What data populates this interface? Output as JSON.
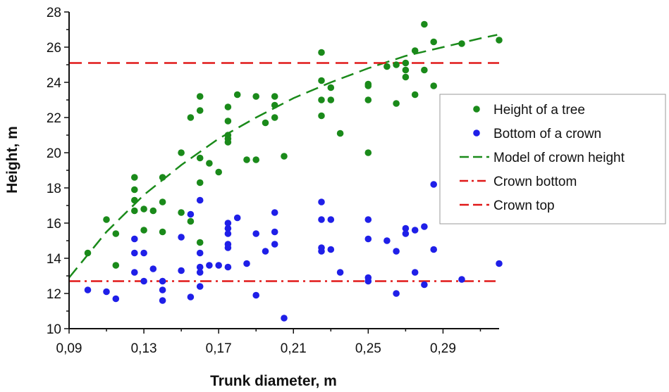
{
  "chart_data": {
    "type": "scatter",
    "xlabel": "Trunk diameter, m",
    "ylabel": "Height, m",
    "xlim": [
      0.09,
      0.32
    ],
    "ylim": [
      10,
      28
    ],
    "x_ticks": [
      "0,09",
      "0,13",
      "0,17",
      "0,21",
      "0,25",
      "0,29"
    ],
    "y_ticks": [
      "10",
      "12",
      "14",
      "16",
      "18",
      "20",
      "22",
      "24",
      "26",
      "28"
    ],
    "grid": false,
    "legend_position": "right",
    "colors": {
      "tree_height": "#1a8a1a",
      "crown_bottom_points": "#1f1fe8",
      "model": "#1a8a1a",
      "crown_bottom_line": "#e01818",
      "crown_top_line": "#e01818",
      "axis": "#111111"
    },
    "series": [
      {
        "name": "Height of a tree",
        "kind": "scatter",
        "points": [
          [
            0.1,
            14.3
          ],
          [
            0.11,
            16.2
          ],
          [
            0.115,
            15.4
          ],
          [
            0.115,
            13.6
          ],
          [
            0.125,
            18.6
          ],
          [
            0.125,
            17.9
          ],
          [
            0.125,
            17.3
          ],
          [
            0.125,
            16.7
          ],
          [
            0.13,
            16.8
          ],
          [
            0.13,
            15.6
          ],
          [
            0.135,
            16.7
          ],
          [
            0.14,
            18.6
          ],
          [
            0.14,
            17.2
          ],
          [
            0.14,
            15.5
          ],
          [
            0.15,
            20.0
          ],
          [
            0.15,
            16.6
          ],
          [
            0.155,
            22.0
          ],
          [
            0.155,
            16.1
          ],
          [
            0.16,
            23.2
          ],
          [
            0.16,
            22.4
          ],
          [
            0.16,
            19.7
          ],
          [
            0.16,
            18.3
          ],
          [
            0.16,
            14.9
          ],
          [
            0.165,
            19.4
          ],
          [
            0.17,
            18.9
          ],
          [
            0.175,
            22.6
          ],
          [
            0.175,
            21.8
          ],
          [
            0.175,
            21.0
          ],
          [
            0.175,
            20.8
          ],
          [
            0.175,
            20.6
          ],
          [
            0.18,
            23.3
          ],
          [
            0.185,
            19.6
          ],
          [
            0.19,
            23.2
          ],
          [
            0.19,
            19.6
          ],
          [
            0.195,
            21.7
          ],
          [
            0.2,
            23.2
          ],
          [
            0.2,
            22.7
          ],
          [
            0.2,
            22.0
          ],
          [
            0.205,
            19.8
          ],
          [
            0.225,
            25.7
          ],
          [
            0.225,
            24.1
          ],
          [
            0.225,
            23.0
          ],
          [
            0.225,
            22.1
          ],
          [
            0.23,
            23.7
          ],
          [
            0.23,
            23.0
          ],
          [
            0.235,
            21.1
          ],
          [
            0.25,
            23.9
          ],
          [
            0.25,
            23.8
          ],
          [
            0.25,
            23.0
          ],
          [
            0.25,
            20.0
          ],
          [
            0.26,
            24.9
          ],
          [
            0.265,
            25.0
          ],
          [
            0.265,
            22.8
          ],
          [
            0.27,
            25.1
          ],
          [
            0.27,
            24.7
          ],
          [
            0.27,
            24.3
          ],
          [
            0.275,
            25.8
          ],
          [
            0.275,
            23.3
          ],
          [
            0.28,
            27.3
          ],
          [
            0.28,
            24.7
          ],
          [
            0.285,
            26.3
          ],
          [
            0.285,
            23.8
          ],
          [
            0.3,
            26.2
          ],
          [
            0.32,
            26.4
          ]
        ]
      },
      {
        "name": "Bottom of a crown",
        "kind": "scatter",
        "points": [
          [
            0.1,
            12.2
          ],
          [
            0.11,
            12.1
          ],
          [
            0.115,
            11.7
          ],
          [
            0.125,
            15.1
          ],
          [
            0.125,
            14.3
          ],
          [
            0.125,
            13.2
          ],
          [
            0.13,
            14.3
          ],
          [
            0.13,
            12.7
          ],
          [
            0.135,
            13.4
          ],
          [
            0.14,
            12.7
          ],
          [
            0.14,
            12.2
          ],
          [
            0.14,
            11.6
          ],
          [
            0.15,
            15.2
          ],
          [
            0.15,
            13.3
          ],
          [
            0.155,
            16.5
          ],
          [
            0.155,
            11.8
          ],
          [
            0.16,
            17.3
          ],
          [
            0.16,
            14.3
          ],
          [
            0.16,
            13.5
          ],
          [
            0.16,
            13.2
          ],
          [
            0.16,
            12.4
          ],
          [
            0.165,
            13.6
          ],
          [
            0.17,
            13.6
          ],
          [
            0.175,
            16.0
          ],
          [
            0.175,
            15.7
          ],
          [
            0.175,
            15.4
          ],
          [
            0.175,
            14.8
          ],
          [
            0.175,
            14.6
          ],
          [
            0.175,
            13.5
          ],
          [
            0.18,
            16.3
          ],
          [
            0.185,
            13.7
          ],
          [
            0.19,
            15.4
          ],
          [
            0.19,
            11.9
          ],
          [
            0.195,
            14.4
          ],
          [
            0.2,
            16.6
          ],
          [
            0.2,
            15.5
          ],
          [
            0.2,
            14.8
          ],
          [
            0.205,
            10.6
          ],
          [
            0.225,
            17.2
          ],
          [
            0.225,
            16.2
          ],
          [
            0.225,
            14.6
          ],
          [
            0.225,
            14.4
          ],
          [
            0.23,
            16.2
          ],
          [
            0.23,
            14.5
          ],
          [
            0.235,
            13.2
          ],
          [
            0.25,
            16.2
          ],
          [
            0.25,
            15.1
          ],
          [
            0.25,
            12.9
          ],
          [
            0.25,
            12.7
          ],
          [
            0.26,
            15.0
          ],
          [
            0.265,
            14.4
          ],
          [
            0.265,
            12.0
          ],
          [
            0.27,
            15.7
          ],
          [
            0.27,
            15.4
          ],
          [
            0.275,
            15.6
          ],
          [
            0.275,
            13.2
          ],
          [
            0.28,
            15.8
          ],
          [
            0.28,
            12.5
          ],
          [
            0.285,
            18.2
          ],
          [
            0.285,
            14.5
          ],
          [
            0.3,
            12.8
          ],
          [
            0.32,
            13.7
          ]
        ]
      },
      {
        "name": "Model of crown height",
        "kind": "line",
        "style": "dashed",
        "x": [
          0.09,
          0.11,
          0.13,
          0.15,
          0.17,
          0.19,
          0.21,
          0.23,
          0.25,
          0.27,
          0.29,
          0.31,
          0.319
        ],
        "y": [
          12.9,
          15.5,
          17.6,
          19.3,
          20.8,
          22.0,
          23.1,
          24.0,
          24.8,
          25.5,
          26.0,
          26.5,
          26.7
        ]
      },
      {
        "name": "Crown bottom",
        "kind": "hline",
        "style": "dashdot",
        "y": 12.7
      },
      {
        "name": "Crown top",
        "kind": "hline",
        "style": "dashed",
        "y": 25.1
      }
    ]
  }
}
